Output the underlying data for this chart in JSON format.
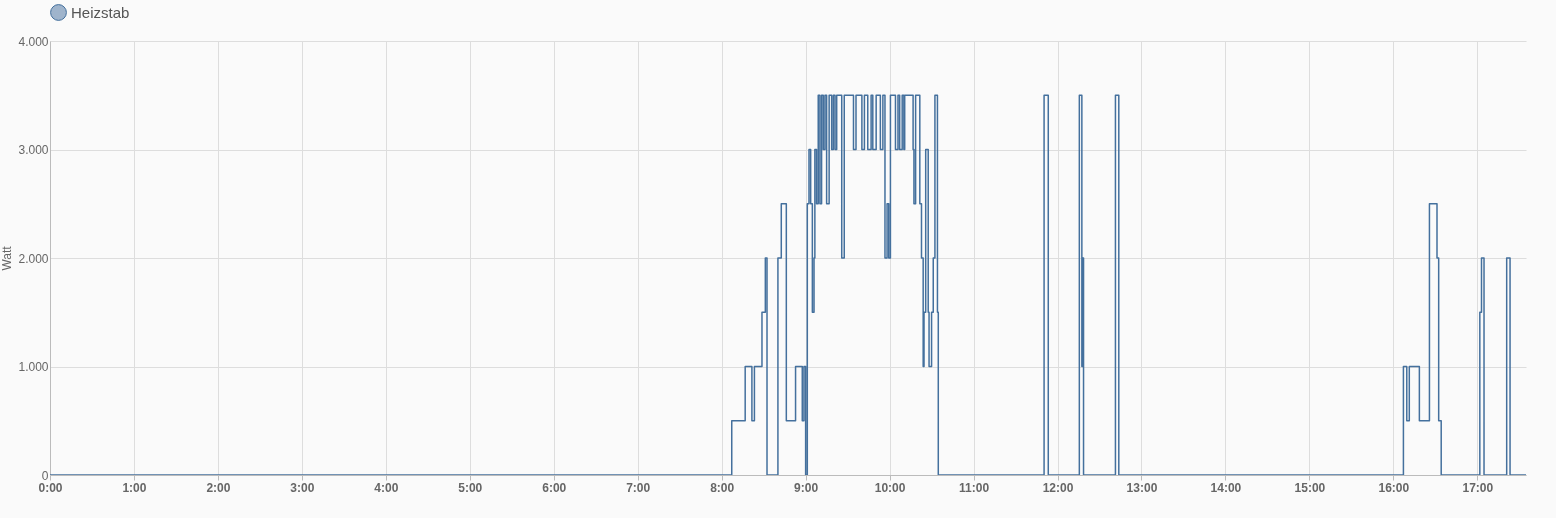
{
  "chart_data": {
    "type": "step",
    "ylabel": "Watt",
    "legend": "top",
    "grid": true,
    "marker": "none",
    "line_style": "solid",
    "xlim": [
      0,
      17.58
    ],
    "ylim": [
      0,
      4000
    ],
    "xticks": [
      {
        "value": 0,
        "label": "0:00"
      },
      {
        "value": 1,
        "label": "1:00"
      },
      {
        "value": 2,
        "label": "2:00"
      },
      {
        "value": 3,
        "label": "3:00"
      },
      {
        "value": 4,
        "label": "4:00"
      },
      {
        "value": 5,
        "label": "5:00"
      },
      {
        "value": 6,
        "label": "6:00"
      },
      {
        "value": 7,
        "label": "7:00"
      },
      {
        "value": 8,
        "label": "8:00"
      },
      {
        "value": 9,
        "label": "9:00"
      },
      {
        "value": 10,
        "label": "10:00"
      },
      {
        "value": 11,
        "label": "11:00"
      },
      {
        "value": 12,
        "label": "12:00"
      },
      {
        "value": 13,
        "label": "13:00"
      },
      {
        "value": 14,
        "label": "14:00"
      },
      {
        "value": 15,
        "label": "15:00"
      },
      {
        "value": 16,
        "label": "16:00"
      },
      {
        "value": 17,
        "label": "17:00"
      }
    ],
    "yticks": [
      0,
      {
        "value": 1000,
        "label": "1.000"
      },
      {
        "value": 2000,
        "label": "2.000"
      },
      {
        "value": 3000,
        "label": "3.000"
      },
      {
        "value": 4000,
        "label": "4.000"
      }
    ],
    "series": [
      {
        "name": "Heizstab",
        "color": "#44709d",
        "x": [
          0,
          8.12,
          8.28,
          8.36,
          8.39,
          8.48,
          8.52,
          8.54,
          8.67,
          8.71,
          8.77,
          8.88,
          8.96,
          8.98,
          9.0,
          9.02,
          9.04,
          9.06,
          9.08,
          9.1,
          9.11,
          9.13,
          9.15,
          9.17,
          9.19,
          9.21,
          9.23,
          9.25,
          9.28,
          9.31,
          9.33,
          9.35,
          9.37,
          9.43,
          9.46,
          9.57,
          9.6,
          9.67,
          9.7,
          9.74,
          9.78,
          9.8,
          9.84,
          9.89,
          9.92,
          9.945,
          9.97,
          9.99,
          10.01,
          10.07,
          10.1,
          10.12,
          10.15,
          10.17,
          10.18,
          10.28,
          10.29,
          10.31,
          10.36,
          10.38,
          10.4,
          10.41,
          10.43,
          10.46,
          10.47,
          10.5,
          10.52,
          10.54,
          10.57,
          10.58,
          11.84,
          11.89,
          12.26,
          12.29,
          12.3,
          12.31,
          12.69,
          12.73,
          16.12,
          16.16,
          16.19,
          16.31,
          16.43,
          16.52,
          16.54,
          16.57,
          17.03,
          17.05,
          17.08,
          17.35,
          17.39,
          17.58
        ],
        "values": [
          0,
          500,
          1000,
          500,
          1000,
          1500,
          2000,
          0,
          2000,
          2500,
          500,
          1000,
          500,
          1000,
          0,
          2500,
          3000,
          2500,
          1500,
          2000,
          3000,
          2500,
          3500,
          2500,
          3500,
          3000,
          3500,
          2500,
          3500,
          3000,
          3500,
          3000,
          3500,
          2000,
          3500,
          3000,
          3500,
          3000,
          3500,
          3000,
          3500,
          3000,
          3500,
          3000,
          3500,
          2000,
          2500,
          2000,
          3500,
          3000,
          3500,
          3000,
          3500,
          3000,
          3500,
          3000,
          2500,
          3500,
          2500,
          2000,
          1000,
          1500,
          3000,
          1500,
          1000,
          1500,
          2000,
          3500,
          1500,
          0,
          3500,
          0,
          3500,
          1000,
          2000,
          0,
          3500,
          0,
          1000,
          500,
          1000,
          500,
          2500,
          2000,
          500,
          0,
          1500,
          2000,
          0,
          2000,
          0,
          0
        ]
      }
    ]
  }
}
